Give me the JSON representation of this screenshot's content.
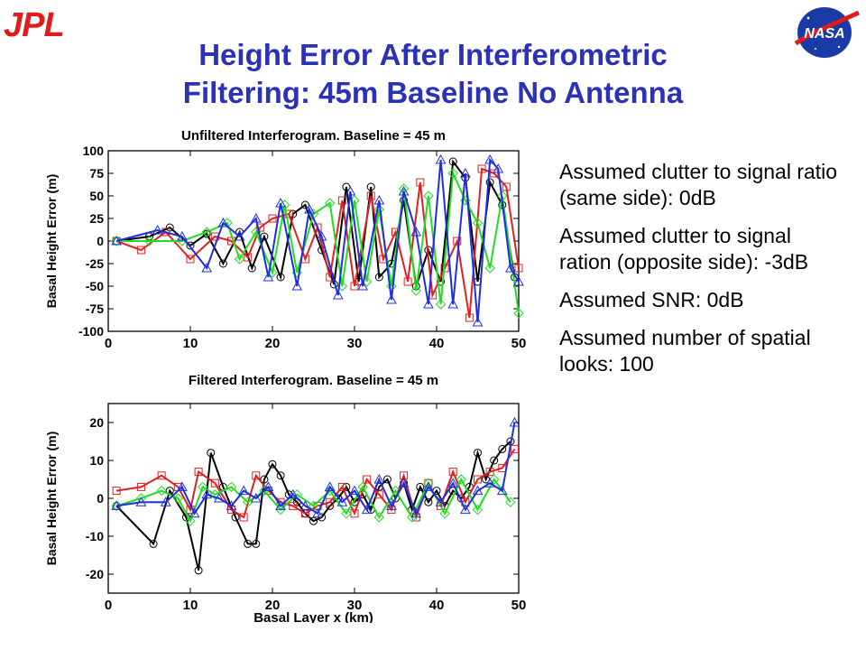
{
  "header": {
    "left_logo_text": "JPL",
    "right_logo_text": "NASA",
    "title_line1": "Height Error After Interferometric",
    "title_line2": "Filtering: 45m Baseline No Antenna"
  },
  "notes": [
    "Assumed clutter to signal ratio (same side): 0dB",
    "Assumed clutter to signal ration (opposite side): -3dB",
    "Assumed SNR: 0dB",
    "Assumed number of spatial looks: 100"
  ],
  "colors": {
    "series_black": "#000000",
    "series_red": "#e02020",
    "series_green": "#22dd22",
    "series_blue": "#1f2fe0",
    "title": "#2a32b8"
  },
  "chart_data": [
    {
      "type": "line",
      "title": "Unfiltered Interferogram. Baseline = 45 m",
      "xlabel": "",
      "ylabel": "Basal Height Error (m)",
      "xlim": [
        0,
        50
      ],
      "ylim": [
        -100,
        100
      ],
      "xticks": [
        0,
        10,
        20,
        30,
        40,
        50
      ],
      "yticks": [
        -100,
        -75,
        -50,
        -25,
        0,
        25,
        50,
        75,
        100
      ],
      "series": [
        {
          "color": "#000000",
          "marker": "circle",
          "x": [
            1,
            5,
            7.5,
            10,
            12,
            14,
            16,
            17.5,
            19,
            21,
            22.5,
            24,
            26,
            27.5,
            29,
            30.5,
            32,
            33,
            34.5,
            36,
            37.5,
            39,
            40.5,
            42,
            43.5,
            45,
            46.5,
            48,
            49.5
          ],
          "y": [
            0,
            5,
            15,
            -5,
            8,
            -25,
            10,
            -30,
            5,
            -40,
            30,
            40,
            -10,
            -48,
            60,
            -45,
            60,
            -40,
            -25,
            45,
            -50,
            -10,
            -45,
            88,
            70,
            -45,
            65,
            40,
            -40
          ]
        },
        {
          "color": "#e02020",
          "marker": "square",
          "x": [
            1,
            4,
            7,
            10,
            13,
            15,
            17,
            18.5,
            20,
            22,
            24,
            25.5,
            27,
            28.5,
            30,
            32,
            33.5,
            35,
            36.5,
            38,
            39.5,
            41,
            42.5,
            44,
            45.5,
            47,
            48.5,
            50
          ],
          "y": [
            0,
            -10,
            10,
            -20,
            5,
            0,
            -18,
            15,
            25,
            30,
            -20,
            15,
            -40,
            45,
            -50,
            50,
            -20,
            10,
            -45,
            65,
            -60,
            -30,
            0,
            -85,
            80,
            75,
            60,
            -30
          ]
        },
        {
          "color": "#22dd22",
          "marker": "diamond",
          "x": [
            1,
            5,
            9,
            12,
            14.5,
            16,
            18,
            20,
            21.5,
            23,
            25,
            27,
            28.5,
            30,
            31.5,
            33,
            34.5,
            36,
            37.5,
            39,
            40.5,
            42,
            43.5,
            45,
            46.5,
            48,
            50
          ],
          "y": [
            0,
            0,
            0,
            10,
            20,
            -20,
            10,
            -35,
            40,
            -35,
            30,
            42,
            -50,
            45,
            -45,
            35,
            -50,
            58,
            -55,
            50,
            -70,
            75,
            45,
            20,
            -30,
            50,
            -80
          ]
        },
        {
          "color": "#1f2fe0",
          "marker": "triangle",
          "x": [
            1,
            6,
            9,
            12,
            14,
            16,
            18,
            19.5,
            21,
            23,
            24.5,
            26,
            28,
            29.5,
            31,
            33,
            34.5,
            36,
            37.5,
            39,
            40.5,
            42,
            43.5,
            45,
            46.5,
            47.5,
            49,
            50
          ],
          "y": [
            0,
            12,
            5,
            -30,
            20,
            5,
            25,
            -40,
            42,
            -50,
            35,
            5,
            -60,
            55,
            -50,
            45,
            -65,
            55,
            10,
            -70,
            90,
            -70,
            75,
            -90,
            90,
            80,
            -30,
            -45
          ]
        }
      ]
    },
    {
      "type": "line",
      "title": "Filtered Interferogram. Baseline = 45 m",
      "xlabel": "Basal Layer x (km)",
      "ylabel": "Basal Height Error (m)",
      "xlim": [
        0,
        50
      ],
      "ylim": [
        -25,
        25
      ],
      "xticks": [
        0,
        10,
        20,
        30,
        40,
        50
      ],
      "yticks": [
        -20,
        -10,
        0,
        10,
        20
      ],
      "series": [
        {
          "color": "#000000",
          "marker": "circle",
          "x": [
            1,
            5.5,
            7.5,
            9.5,
            11,
            12.5,
            14,
            15.5,
            17,
            18,
            19,
            20,
            21,
            22,
            23,
            24,
            25,
            26,
            27,
            28,
            29,
            30,
            31,
            32,
            33,
            34,
            35,
            36,
            37,
            38,
            39,
            40,
            41,
            42,
            43,
            44,
            45,
            46,
            47,
            48,
            49
          ],
          "y": [
            -2,
            -12,
            2,
            -5,
            -19,
            12,
            3,
            -5,
            -12,
            -12,
            5,
            9,
            6,
            1,
            -1,
            -4,
            -6,
            -5,
            -2,
            0,
            3,
            -1,
            1,
            -3,
            3,
            5,
            0,
            4,
            -3,
            3,
            -1,
            2,
            -2,
            2,
            0,
            3,
            12,
            5,
            10,
            13,
            15
          ]
        },
        {
          "color": "#e02020",
          "marker": "square",
          "x": [
            1,
            4,
            6.5,
            8.5,
            10,
            11,
            13,
            15,
            16.5,
            18,
            19.5,
            21,
            22.5,
            24,
            25.5,
            27,
            28.5,
            30,
            31.5,
            33,
            34.5,
            36,
            37.5,
            39,
            40.5,
            42,
            43.5,
            45,
            46.5,
            48,
            49.5
          ],
          "y": [
            2,
            3,
            6,
            3,
            -3,
            7,
            4,
            -3,
            -5,
            6,
            2,
            -1,
            -2,
            -4,
            -2,
            -1,
            3,
            -4,
            5,
            1,
            -3,
            6,
            -5,
            4,
            -2,
            7,
            -1,
            5,
            7,
            8,
            13
          ]
        },
        {
          "color": "#22dd22",
          "marker": "diamond",
          "x": [
            1,
            4,
            6.5,
            8.5,
            10,
            11.5,
            13,
            15,
            17,
            19,
            21,
            23,
            25,
            27,
            29,
            31,
            33,
            35,
            37,
            39,
            41,
            43,
            45,
            47,
            49
          ],
          "y": [
            -2,
            0,
            2,
            0,
            -6,
            3,
            1,
            3,
            -1,
            2,
            -3,
            1,
            -2,
            2,
            -4,
            3,
            -5,
            2,
            -5,
            4,
            -4,
            5,
            -3,
            5,
            -1
          ]
        },
        {
          "color": "#1f2fe0",
          "marker": "triangle",
          "x": [
            1,
            4,
            7,
            9,
            10.5,
            12,
            13.5,
            15,
            16.5,
            18,
            19.5,
            21,
            22.5,
            24,
            25.5,
            27,
            28.5,
            30,
            31.5,
            33,
            34.5,
            36,
            37.5,
            39,
            40.5,
            42,
            43.5,
            45,
            46.5,
            48,
            49.5
          ],
          "y": [
            -2,
            -1,
            -1,
            3,
            -4,
            1,
            0,
            -2,
            2,
            0,
            3,
            -2,
            1,
            -2,
            -4,
            3,
            -1,
            2,
            -3,
            5,
            -2,
            4,
            -4,
            3,
            -1,
            4,
            -3,
            2,
            4,
            2,
            20
          ]
        }
      ]
    }
  ]
}
